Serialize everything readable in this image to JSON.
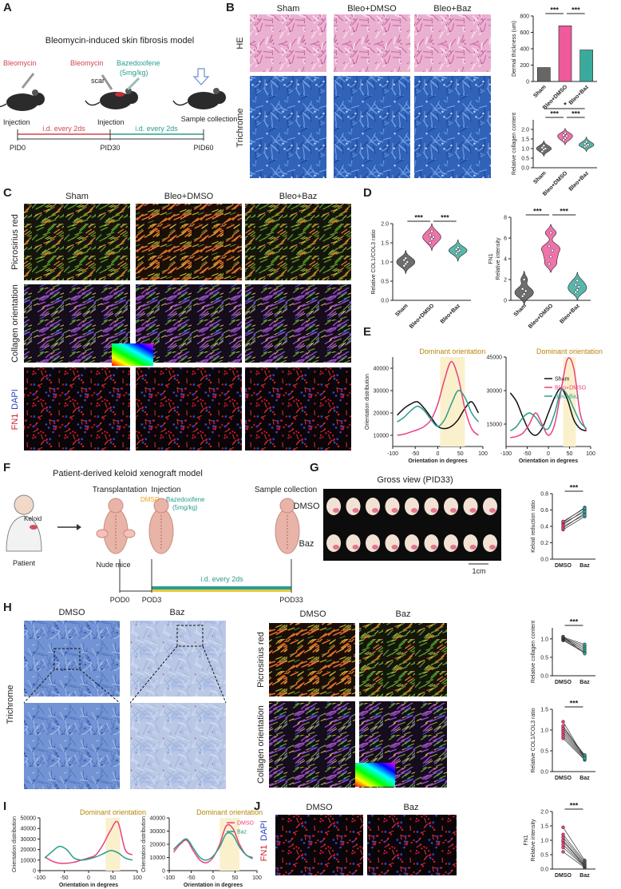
{
  "figure": {
    "panel_labels": [
      "A",
      "B",
      "C",
      "D",
      "E",
      "F",
      "G",
      "H",
      "I",
      "J"
    ],
    "a": {
      "title": "Bleomycin-induced skin fibrosis model",
      "drug1": "Bleomycin",
      "drug2": "Bleomycin",
      "drug3": "Bazedoxifene",
      "dose": "(5mg/kg)",
      "scar": "scar",
      "step1": "Injection",
      "step2": "Injection",
      "step3": "Sample collection",
      "interval1": "i.d. every 2ds",
      "interval2": "i.d. every 2ds",
      "times": [
        "PID0",
        "PID30",
        "PID60"
      ]
    },
    "b": {
      "columns": [
        "Sham",
        "Bleo+DMSO",
        "Bleo+Baz"
      ],
      "rows": [
        "HE",
        "Trichrome"
      ]
    },
    "c": {
      "columns": [
        "Sham",
        "Bleo+DMSO",
        "Bleo+Baz"
      ],
      "rows": [
        "Picrosirius red",
        "Collagen orientation"
      ],
      "stain": [
        "FN1",
        "DAPI"
      ]
    },
    "f": {
      "title": "Patient-derived keloid xenograft model",
      "step1": "Transplantation",
      "step2": "Injection",
      "step3": "Sample collection",
      "keloid": "Keloid",
      "patient": "Patient",
      "mice": "Nude mice",
      "vehicle": "DMSO",
      "drug": "Bazedoxifene",
      "dose": "(5mg/kg)",
      "interval": "i.d. every 2ds",
      "times": [
        "POD0",
        "POD3",
        "POD33"
      ]
    },
    "g": {
      "title": "Gross view (PID33)",
      "rows": [
        "DMSO",
        "Baz"
      ],
      "scale": "1cm"
    },
    "h": {
      "columns": [
        "DMSO",
        "Baz"
      ],
      "row": "Trichrome",
      "columns2": [
        "DMSO",
        "Baz"
      ],
      "rows2": [
        "Picrosirius red",
        "Collagen orientation"
      ]
    },
    "j": {
      "columns": [
        "DMSO",
        "Baz"
      ],
      "stain": [
        "FN1",
        "DAPI"
      ]
    }
  },
  "chart_data": [
    {
      "type": "bar",
      "y_label": [
        "Dermal thickness (um)"
      ],
      "categories": [
        "Sham",
        "Bleo+DMSO",
        "Bleo+Baz"
      ],
      "values": [
        170,
        680,
        385
      ],
      "colors": [
        "#666666",
        "#ee5a9c",
        "#3aaa9d"
      ],
      "ylim": [
        0,
        800
      ],
      "yticks": [
        0,
        200,
        400,
        600,
        800
      ],
      "significance": [
        "***",
        "***"
      ]
    },
    {
      "type": "violin",
      "y_label": [
        "Relative collagen content"
      ],
      "categories": [
        "Sham",
        "Bleo+DMSO",
        "Bleo+Baz"
      ],
      "values": [
        [
          0.85,
          0.95,
          1.0,
          1.05,
          1.15
        ],
        [
          1.45,
          1.55,
          1.65,
          1.7,
          1.8
        ],
        [
          1.1,
          1.15,
          1.2,
          1.25,
          1.35
        ]
      ],
      "colors": [
        "#555555",
        "#ee5a9c",
        "#3aaa9d"
      ],
      "ylim": [
        0,
        2.5
      ],
      "yticks": [
        {
          "value": 0,
          "label": "0.0"
        },
        {
          "value": 0.5,
          "label": "0.5"
        },
        {
          "value": 1,
          "label": "1.0"
        },
        {
          "value": 1.5,
          "label": "1.5"
        },
        {
          "value": 2,
          "label": "2.0"
        }
      ],
      "significance": [
        "*",
        "***",
        "***"
      ]
    },
    {
      "type": "violin",
      "y_label": [
        "Relative COL1/COL3 ratio"
      ],
      "categories": [
        "Sham",
        "Bleo+DMSO",
        "Bleo+Baz"
      ],
      "values": [
        [
          0.9,
          0.95,
          1.0,
          1.05,
          1.1
        ],
        [
          1.5,
          1.6,
          1.65,
          1.7,
          1.8
        ],
        [
          1.22,
          1.27,
          1.3,
          1.33,
          1.38
        ]
      ],
      "colors": [
        "#555555",
        "#ee5a9c",
        "#3aaa9d"
      ],
      "ylim": [
        0,
        2.0
      ],
      "yticks": [
        {
          "value": 0,
          "label": "0.0"
        },
        {
          "value": 0.5,
          "label": "0.5"
        },
        {
          "value": 1,
          "label": "1.0"
        },
        {
          "value": 1.5,
          "label": "1.5"
        },
        {
          "value": 2,
          "label": "2.0"
        }
      ],
      "significance": [
        "***",
        "***"
      ]
    },
    {
      "type": "violin",
      "y_label": [
        "FN1",
        "Relative intensity"
      ],
      "categories": [
        "Sham",
        "Bleo+DMSO",
        "Bleo+Baz"
      ],
      "values": [
        [
          0.4,
          0.6,
          0.9,
          1.1,
          2.0
        ],
        [
          3.5,
          4.2,
          4.8,
          5.2,
          6.5
        ],
        [
          0.8,
          1.0,
          1.3,
          1.5,
          1.9
        ]
      ],
      "colors": [
        "#555555",
        "#ee5a9c",
        "#3aaa9d"
      ],
      "ylim": [
        0,
        8
      ],
      "yticks": [
        0,
        2,
        4,
        6,
        8
      ],
      "significance": [
        "***",
        "***"
      ]
    },
    {
      "type": "line",
      "x_label": "Orientation in degrees",
      "y_label": [
        "Orientation distribution"
      ],
      "annotation": "Dominant orientation",
      "highlight": [
        5,
        60
      ],
      "x": [
        -90,
        -75,
        -60,
        -45,
        -30,
        -15,
        0,
        15,
        30,
        45,
        60,
        75,
        90
      ],
      "xlim": [
        -100,
        100
      ],
      "xticks": [
        -100,
        -50,
        0,
        50,
        100
      ],
      "ylim": [
        5000,
        45000
      ],
      "yticks": [
        10000,
        20000,
        30000,
        40000
      ],
      "series": [
        {
          "color": "#111111",
          "values": [
            19000,
            22000,
            24000,
            25000,
            22000,
            18000,
            14000,
            13000,
            14000,
            17000,
            22000,
            25000,
            20000
          ]
        },
        {
          "color": "#e8417f",
          "values": [
            10000,
            10500,
            11500,
            12500,
            14000,
            17000,
            24000,
            35000,
            43000,
            36000,
            22000,
            13000,
            10000
          ]
        },
        {
          "color": "#2a9d8f",
          "values": [
            16000,
            18000,
            21000,
            23000,
            21000,
            17000,
            14000,
            17000,
            24000,
            30000,
            27000,
            20000,
            16000
          ]
        }
      ]
    },
    {
      "type": "line",
      "x_label": "Orientation in degrees",
      "y_label": [],
      "annotation": "Dominant orientation",
      "highlight": [
        35,
        65
      ],
      "x": [
        -90,
        -75,
        -60,
        -45,
        -30,
        -15,
        0,
        15,
        30,
        45,
        60,
        75,
        90
      ],
      "xlim": [
        -100,
        100
      ],
      "xticks": [
        -100,
        -50,
        0,
        50,
        100
      ],
      "ylim": [
        5000,
        45000
      ],
      "yticks": [
        15000,
        30000,
        45000
      ],
      "series": [
        {
          "name": "Sham",
          "color": "#111111",
          "values": [
            29000,
            25000,
            18000,
            12000,
            10000,
            13000,
            20000,
            27000,
            31000,
            26000,
            17000,
            13000,
            12000
          ]
        },
        {
          "name": "Bleo+DMSO",
          "color": "#e8417f",
          "values": [
            9000,
            9500,
            11000,
            15000,
            20000,
            15000,
            10000,
            15000,
            30000,
            44000,
            40000,
            20000,
            12000
          ]
        },
        {
          "name": "Bleo+Baz",
          "color": "#2a9d8f",
          "values": [
            12000,
            14000,
            18000,
            20000,
            18000,
            14000,
            13000,
            20000,
            30000,
            28000,
            22000,
            16000,
            13000
          ]
        }
      ]
    },
    {
      "type": "paired",
      "y_label": [
        "Keloid reduction ratio"
      ],
      "categories": [
        "DMSO",
        "Baz"
      ],
      "values": [
        [
          0.36,
          0.38,
          0.4,
          0.42,
          0.44,
          0.45,
          0.46
        ],
        [
          0.52,
          0.56,
          0.54,
          0.6,
          0.58,
          0.63,
          0.62
        ]
      ],
      "colors": [
        "#e8417f",
        "#2a9d8f"
      ],
      "ylim": [
        0,
        0.8
      ],
      "yticks": [
        {
          "value": 0,
          "label": "0.0"
        },
        {
          "value": 0.2,
          "label": "0.2"
        },
        {
          "value": 0.4,
          "label": "0.4"
        },
        {
          "value": 0.6,
          "label": "0.6"
        },
        {
          "value": 0.8,
          "label": "0.8"
        }
      ],
      "significance": [
        "***"
      ]
    },
    {
      "type": "paired",
      "y_label": [
        "Relative collagen content"
      ],
      "categories": [
        "DMSO",
        "Baz"
      ],
      "values": [
        [
          0.96,
          0.98,
          1.0,
          1.02,
          1.03,
          1.05,
          1.06
        ],
        [
          0.62,
          0.65,
          0.7,
          0.75,
          0.8,
          0.85,
          0.6
        ]
      ],
      "colors": [
        "#444444",
        "#2a9d8f"
      ],
      "ylim": [
        0,
        1.3
      ],
      "yticks": [
        {
          "value": 0,
          "label": "0.0"
        },
        {
          "value": 0.5,
          "label": "0.5"
        },
        {
          "value": 1,
          "label": "1.0"
        }
      ],
      "significance": [
        "***"
      ]
    },
    {
      "type": "paired",
      "y_label": [
        "Relative COL1/COL3 ratio"
      ],
      "categories": [
        "DMSO",
        "Baz"
      ],
      "values": [
        [
          0.8,
          0.85,
          0.9,
          0.95,
          1.0,
          1.05,
          1.1,
          1.2
        ],
        [
          0.28,
          0.3,
          0.33,
          0.35,
          0.38,
          0.4,
          0.35,
          0.32
        ]
      ],
      "colors": [
        "#e8417f",
        "#2a9d8f"
      ],
      "ylim": [
        0,
        1.5
      ],
      "yticks": [
        {
          "value": 0,
          "label": "0.0"
        },
        {
          "value": 0.5,
          "label": "0.5"
        },
        {
          "value": 1,
          "label": "1.0"
        },
        {
          "value": 1.5,
          "label": "1.5"
        }
      ],
      "significance": [
        "***"
      ]
    },
    {
      "type": "line",
      "x_label": "Orientation in degrees",
      "y_label": [
        "Orientation distribution"
      ],
      "annotation": "Dominant orientation",
      "highlight": [
        35,
        65
      ],
      "x": [
        -90,
        -75,
        -60,
        -45,
        -30,
        -15,
        0,
        15,
        30,
        45,
        60,
        75,
        90
      ],
      "xlim": [
        -100,
        100
      ],
      "xticks": [
        -100,
        -50,
        0,
        50,
        100
      ],
      "ylim": [
        0,
        50000
      ],
      "yticks": [
        0,
        10000,
        20000,
        30000,
        40000,
        50000
      ],
      "series": [
        {
          "color": "#e8417f",
          "values": [
            13000,
            9000,
            7000,
            7000,
            8000,
            10000,
            12000,
            15000,
            25000,
            38000,
            46000,
            20000,
            15000
          ]
        },
        {
          "color": "#2a9d8f",
          "values": [
            12000,
            18000,
            23000,
            20000,
            12000,
            10000,
            11000,
            13000,
            16000,
            19000,
            17000,
            12000,
            10000
          ]
        }
      ]
    },
    {
      "type": "line",
      "x_label": "Orientation in degrees",
      "y_label": [
        "Orientation distribution"
      ],
      "annotation": "Dominant orientation",
      "highlight": [
        15,
        60
      ],
      "x": [
        -90,
        -75,
        -60,
        -45,
        -30,
        -15,
        0,
        15,
        30,
        45,
        60,
        75,
        90
      ],
      "xlim": [
        -100,
        100
      ],
      "xticks": [
        -100,
        -50,
        0,
        50,
        100
      ],
      "ylim": [
        0,
        40000
      ],
      "yticks": [
        0,
        10000,
        20000,
        30000,
        40000
      ],
      "series": [
        {
          "name": "DMSO",
          "color": "#e8417f",
          "values": [
            14000,
            20000,
            23000,
            15000,
            8000,
            6000,
            10000,
            20000,
            34000,
            32000,
            20000,
            12000,
            10000
          ]
        },
        {
          "name": "Baz",
          "color": "#2a9d8f",
          "values": [
            16000,
            21000,
            24000,
            17000,
            10000,
            8000,
            11000,
            18000,
            28000,
            27000,
            18000,
            12000,
            9000
          ]
        }
      ]
    },
    {
      "type": "paired",
      "y_label": [
        "FN1",
        "Relative intensity"
      ],
      "categories": [
        "DMSO",
        "Baz"
      ],
      "values": [
        [
          0.6,
          0.75,
          0.85,
          0.95,
          1.0,
          1.1,
          1.2,
          1.45
        ],
        [
          0.05,
          0.08,
          0.1,
          0.12,
          0.15,
          0.2,
          0.25,
          0.3
        ]
      ],
      "colors": [
        "#e8417f",
        "#555555"
      ],
      "ylim": [
        0,
        2.0
      ],
      "yticks": [
        {
          "value": 0,
          "label": "0.0"
        },
        {
          "value": 0.5,
          "label": "0.5"
        },
        {
          "value": 1,
          "label": "1.0"
        },
        {
          "value": 1.5,
          "label": "1.5"
        },
        {
          "value": 2,
          "label": "2.0"
        }
      ],
      "significance": [
        "***"
      ]
    }
  ]
}
